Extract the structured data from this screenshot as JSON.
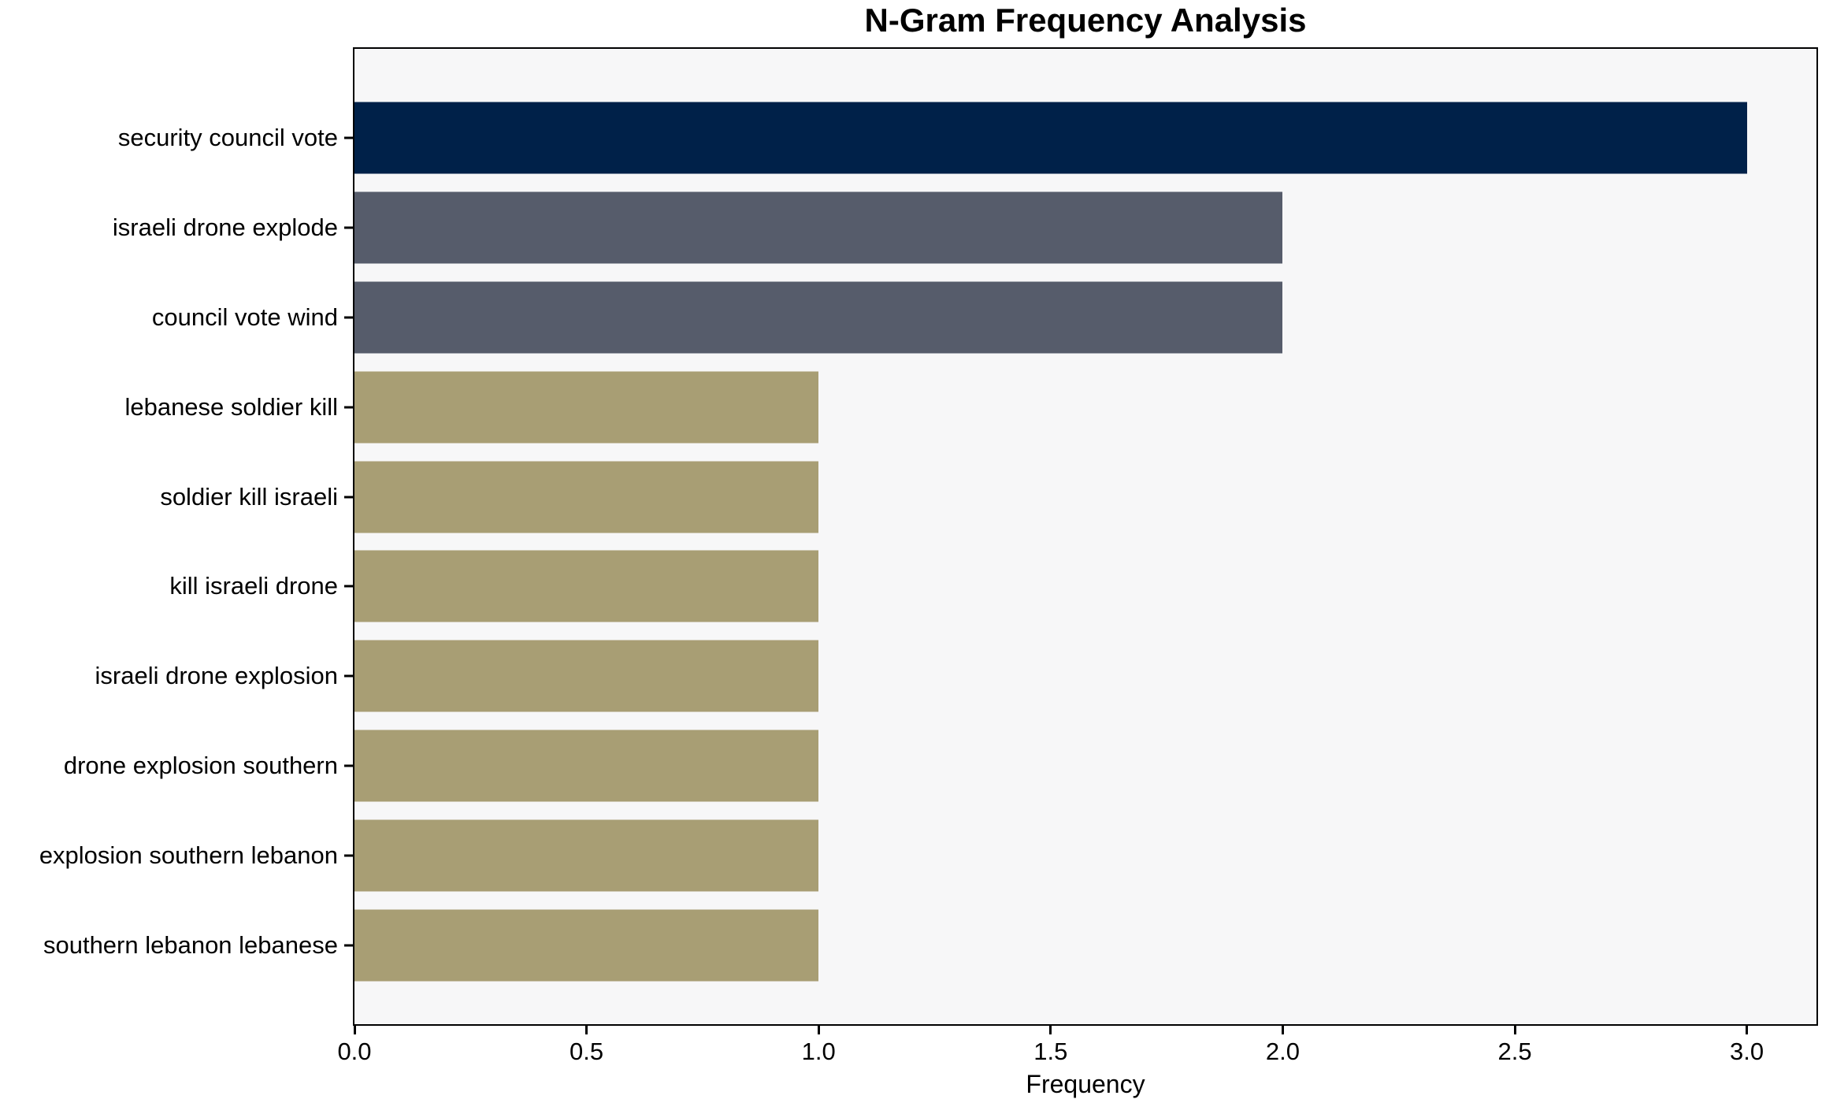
{
  "chart_data": {
    "type": "bar",
    "orientation": "horizontal",
    "title": "N-Gram Frequency Analysis",
    "xlabel": "Frequency",
    "ylabel": "",
    "categories": [
      "security council vote",
      "israeli drone explode",
      "council vote wind",
      "lebanese soldier kill",
      "soldier kill israeli",
      "kill israeli drone",
      "israeli drone explosion",
      "drone explosion southern",
      "explosion southern lebanon",
      "southern lebanon lebanese"
    ],
    "values": [
      3,
      2,
      2,
      1,
      1,
      1,
      1,
      1,
      1,
      1
    ],
    "bar_colors": [
      "#002149",
      "#565C6B",
      "#565C6B",
      "#A89E74",
      "#A89E74",
      "#A89E74",
      "#A89E74",
      "#A89E74",
      "#A89E74",
      "#A89E74"
    ],
    "xlim": [
      0,
      3.15
    ],
    "xticks": [
      "0.0",
      "0.5",
      "1.0",
      "1.5",
      "2.0",
      "2.5",
      "3.0"
    ],
    "xtick_values": [
      0,
      0.5,
      1.0,
      1.5,
      2.0,
      2.5,
      3.0
    ],
    "grid": false,
    "legend": null,
    "colors": {
      "plot_background": "#F7F7F8",
      "figure_background": "#FFFFFF",
      "spine": "#000000",
      "text": "#000000"
    }
  }
}
